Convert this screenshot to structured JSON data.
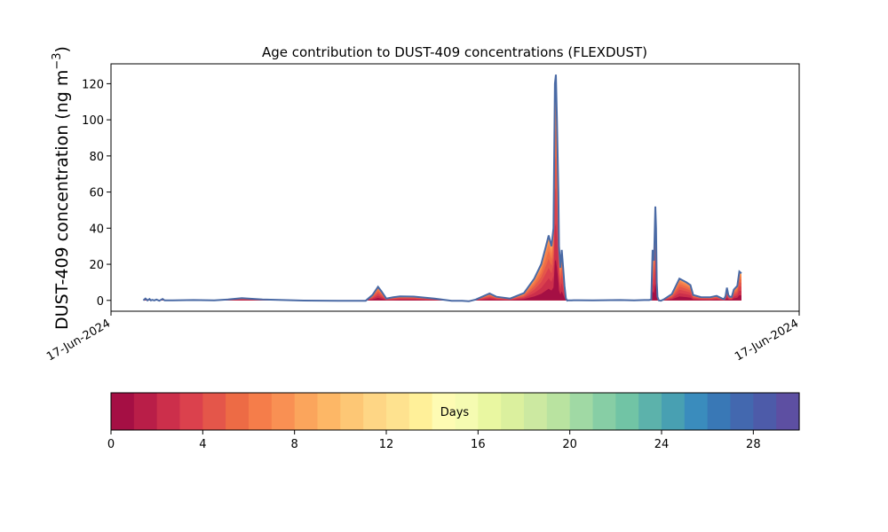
{
  "chart_data": {
    "type": "area",
    "title": "Age contribution to DUST-409 concentrations (FLEXDUST)",
    "ylabel_main": "DUST-409 concentration (ng m",
    "ylabel_sup": "−3",
    "ylabel_close": ")",
    "xlabel": "",
    "ylim": [
      -6,
      131
    ],
    "yticks": [
      0,
      20,
      40,
      60,
      80,
      100,
      120
    ],
    "xticks": [
      "17-Jun-2024",
      "17-Jun-2024"
    ],
    "grid": false,
    "series_note_total": "total concentration envelope",
    "total": {
      "x": [
        0.047,
        0.05,
        0.053,
        0.056,
        0.058,
        0.06,
        0.063,
        0.066,
        0.07,
        0.075,
        0.078,
        0.09,
        0.12,
        0.15,
        0.17,
        0.19,
        0.22,
        0.28,
        0.33,
        0.37,
        0.38,
        0.388,
        0.393,
        0.4,
        0.41,
        0.42,
        0.44,
        0.47,
        0.495,
        0.51,
        0.52,
        0.53,
        0.55,
        0.56,
        0.58,
        0.6,
        0.615,
        0.625,
        0.632,
        0.636,
        0.64,
        0.643,
        0.645,
        0.6465,
        0.648,
        0.65,
        0.651,
        0.653,
        0.655,
        0.657,
        0.659,
        0.661,
        0.663,
        0.6635,
        0.665,
        0.667,
        0.6695,
        0.672,
        0.68,
        0.7,
        0.74,
        0.76,
        0.775,
        0.782,
        0.785,
        0.787,
        0.789,
        0.791,
        0.792,
        0.793,
        0.794,
        0.796,
        0.799,
        0.803,
        0.815,
        0.826,
        0.836,
        0.842,
        0.846,
        0.857,
        0.87,
        0.88,
        0.888,
        0.891,
        0.893,
        0.895,
        0.897,
        0.899,
        0.902,
        0.905,
        0.91,
        0.913,
        0.916
      ],
      "y": [
        0,
        1,
        0,
        0.8,
        0,
        0.3,
        0,
        0.5,
        -0.2,
        0.8,
        0,
        0,
        0.2,
        0,
        0.5,
        1.2,
        0.5,
        -0.1,
        -0.2,
        -0.2,
        3,
        7.5,
        5,
        1,
        1.7,
        2.2,
        2.1,
        1,
        -0.2,
        -0.2,
        -0.5,
        0.5,
        3.8,
        2,
        1,
        4,
        12,
        20,
        30,
        36,
        30,
        40,
        120,
        125,
        100,
        60,
        30,
        18,
        28,
        18,
        8,
        1,
        -0.1,
        0,
        0,
        0,
        0,
        0.1,
        0.1,
        0,
        0.2,
        0,
        0.2,
        0.2,
        0.5,
        28,
        22,
        52,
        40,
        10,
        2,
        0,
        -0.2,
        0.5,
        3.5,
        12,
        10,
        8.5,
        3,
        1.8,
        1.7,
        2.5,
        1,
        0.8,
        2.5,
        7,
        3,
        2,
        2,
        6,
        8,
        16,
        15
      ]
    },
    "colorbar": {
      "label": "Days",
      "ticks": [
        0,
        4,
        8,
        12,
        16,
        20,
        24,
        28
      ],
      "range": [
        0,
        30
      ],
      "colors": [
        "#a50f44",
        "#b91e48",
        "#cc2f4b",
        "#db414d",
        "#e4564a",
        "#ed6b45",
        "#f57d4a",
        "#f99053",
        "#fba55c",
        "#fdb766",
        "#fdc775",
        "#fed685",
        "#fee28f",
        "#fff099",
        "#fefbb3",
        "#f5fbb1",
        "#e9f7a1",
        "#dbf09e",
        "#cce9a1",
        "#b9e3a0",
        "#a0d9a4",
        "#87cea5",
        "#71c4a5",
        "#5cb2ab",
        "#48a0b2",
        "#3a8cbd",
        "#3978b6",
        "#4368af",
        "#4d5ba9",
        "#5d4fa2"
      ]
    }
  }
}
